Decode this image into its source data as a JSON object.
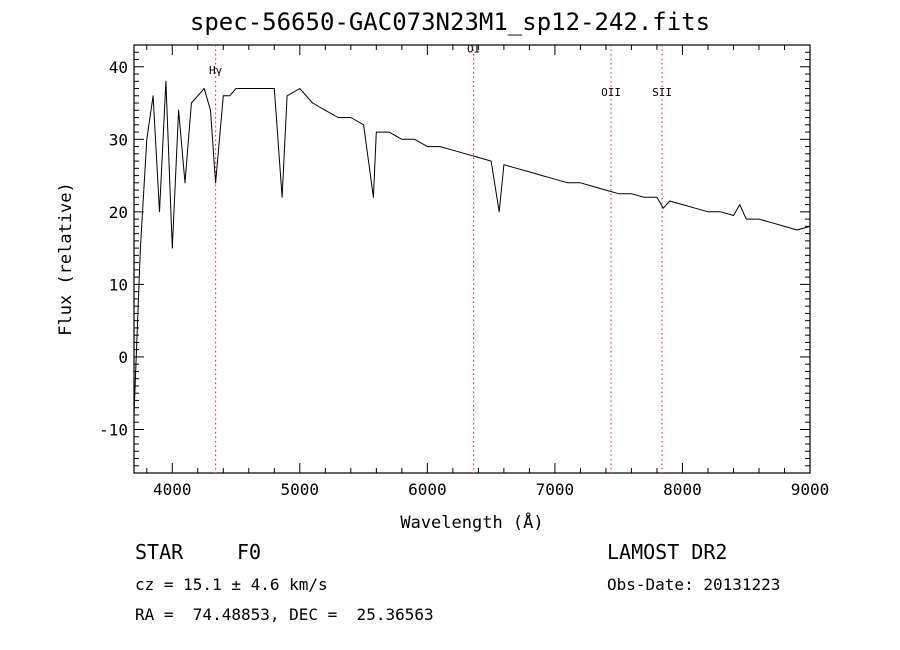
{
  "chart_data": {
    "type": "line",
    "title": "spec-56650-GAC073N23M1_sp12-242.fits",
    "xlabel": "Wavelength (Å)",
    "ylabel": "Flux (relative)",
    "xlim": [
      3700,
      9000
    ],
    "ylim": [
      -16,
      43
    ],
    "xticks": [
      4000,
      5000,
      6000,
      7000,
      8000,
      9000
    ],
    "yticks": [
      -10,
      0,
      10,
      20,
      30,
      40
    ],
    "grid": false,
    "series": [
      {
        "x": [
          3700,
          3750,
          3800,
          3850,
          3900,
          3950,
          4000,
          4050,
          4100,
          4150,
          4200,
          4250,
          4300,
          4340,
          4400,
          4450,
          4500,
          4600,
          4700,
          4800,
          4861,
          4900,
          5000,
          5100,
          5200,
          5300,
          5400,
          5500,
          5577,
          5600,
          5700,
          5800,
          5900,
          6000,
          6100,
          6200,
          6300,
          6400,
          6500,
          6563,
          6600,
          6700,
          6800,
          6900,
          7000,
          7100,
          7200,
          7300,
          7400,
          7500,
          7600,
          7700,
          7800,
          7850,
          7900,
          8000,
          8100,
          8200,
          8300,
          8400,
          8450,
          8500,
          8600,
          8700,
          8800,
          8900,
          9000
        ],
        "y": [
          -8,
          15,
          30,
          36,
          20,
          38,
          15,
          34,
          24,
          35,
          36,
          37,
          34,
          24,
          36,
          36,
          37,
          37,
          37,
          37,
          22,
          36,
          37,
          35,
          34,
          33,
          33,
          32,
          22,
          31,
          31,
          30,
          30,
          29,
          29,
          28.5,
          28,
          27.5,
          27,
          20,
          26.5,
          26,
          25.5,
          25,
          24.5,
          24,
          24,
          23.5,
          23,
          22.5,
          22.5,
          22,
          22,
          20.5,
          21.5,
          21,
          20.5,
          20,
          20,
          19.5,
          21,
          19,
          19,
          18.5,
          18,
          17.5,
          18
        ]
      }
    ],
    "lines": [
      {
        "label": "Hγ",
        "x": 4340,
        "label_y": 39
      },
      {
        "label": "OI",
        "x": 6363,
        "label_y": 42
      },
      {
        "label": "OII",
        "x": 7440,
        "label_y": 36
      },
      {
        "label": "SII",
        "x": 7840,
        "label_y": 36
      }
    ],
    "colors": {
      "axis": "#000000",
      "spectrum": "#000000",
      "line_marker": "#d81b1b",
      "background": "#ffffff"
    }
  },
  "info": {
    "obj_class": "STAR",
    "subclass": "F0",
    "survey": "LAMOST DR2",
    "cz": "cz = 15.1 ± 4.6 km/s",
    "obs_date": "Obs-Date: 20131223",
    "radec": "RA =  74.48853, DEC =  25.36563"
  }
}
